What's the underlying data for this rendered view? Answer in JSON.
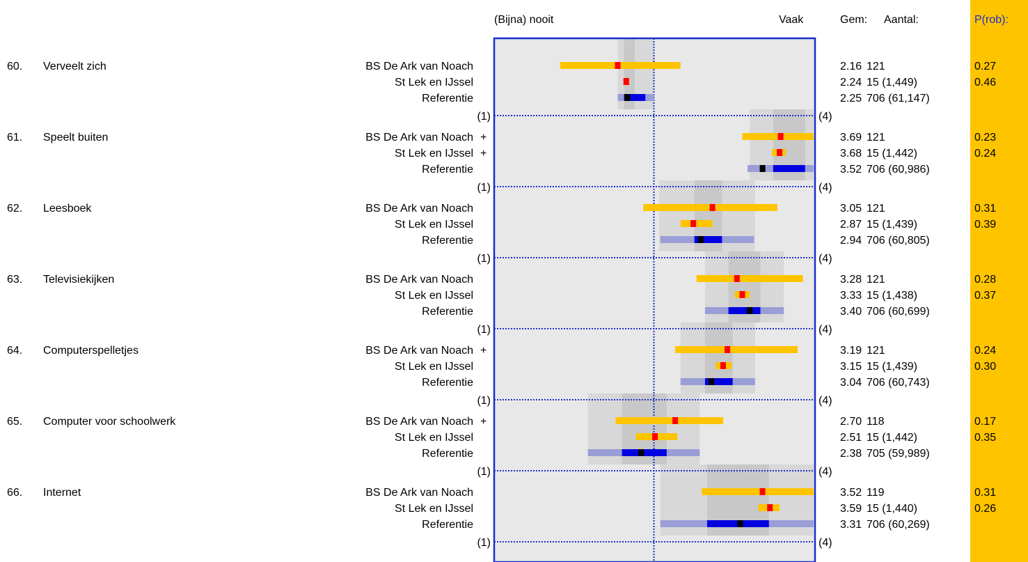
{
  "header": {
    "low_label": "(Bijna) nooit",
    "high_label": "Vaak",
    "mean_label": "Gem:",
    "count_label": "Aantal:",
    "prob_label": "P(rob):"
  },
  "scale": {
    "min_label": "(1)",
    "max_label": "(4)"
  },
  "colors": {
    "panel_bg": "#e8e8e8",
    "band_outer": "#d8d8d8",
    "band_inner": "#c8c8c8",
    "frame": "#1a2ecc",
    "school_bar": "#ffc400",
    "school_mean": "#ff0000",
    "ref_bar_outer": "#9a9ed6",
    "ref_bar_inner": "#0000e0",
    "ref_mean": "#000000",
    "prob_column": "#ffc400"
  },
  "chart_data": {
    "type": "interval-dot",
    "x_range": [
      1,
      4
    ],
    "reference_line": 2.5,
    "items": [
      {
        "number": "60.",
        "label": "Verveelt zich",
        "band_outer": [
          2.16,
          2.5
        ],
        "band_inner": [
          2.22,
          2.32
        ],
        "rows": [
          {
            "name": "BS De Ark van Noach",
            "marker": "",
            "mean": 2.16,
            "mean_text": "2.16",
            "count": "121",
            "prob": "0.27",
            "range": [
              1.62,
              2.75
            ],
            "inner": null
          },
          {
            "name": "St Lek en IJssel",
            "marker": "",
            "mean": 2.24,
            "mean_text": "2.24",
            "count": "15 (1,449)",
            "prob": "0.46",
            "range": [
              2.22,
              2.27
            ],
            "inner": null
          },
          {
            "name": "Referentie",
            "marker": "",
            "mean": 2.25,
            "mean_text": "2.25",
            "count": "706 (61,147)",
            "prob": "",
            "range": [
              2.16,
              2.5
            ],
            "inner": [
              2.22,
              2.42
            ]
          }
        ]
      },
      {
        "number": "61.",
        "label": "Speelt buiten",
        "band_outer": [
          3.4,
          4.0
        ],
        "band_inner": [
          3.62,
          3.92
        ],
        "rows": [
          {
            "name": "BS De Ark van Noach",
            "marker": "+",
            "mean": 3.69,
            "mean_text": "3.69",
            "count": "121",
            "prob": "0.23",
            "range": [
              3.33,
              4.0
            ],
            "inner": null
          },
          {
            "name": "St Lek en IJssel",
            "marker": "+",
            "mean": 3.68,
            "mean_text": "3.68",
            "count": "15 (1,442)",
            "prob": "0.24",
            "range": [
              3.61,
              3.74
            ],
            "inner": null
          },
          {
            "name": "Referentie",
            "marker": "",
            "mean": 3.52,
            "mean_text": "3.52",
            "count": "706 (60,986)",
            "prob": "",
            "range": [
              3.38,
              4.0
            ],
            "inner": [
              3.62,
              3.92
            ]
          }
        ]
      },
      {
        "number": "62.",
        "label": "Leesboek",
        "band_outer": [
          2.55,
          3.45
        ],
        "band_inner": [
          2.88,
          3.14
        ],
        "rows": [
          {
            "name": "BS De Ark van Noach",
            "marker": "",
            "mean": 3.05,
            "mean_text": "3.05",
            "count": "121",
            "prob": "0.31",
            "range": [
              2.4,
              3.66
            ],
            "inner": null
          },
          {
            "name": "St Lek en IJssel",
            "marker": "",
            "mean": 2.87,
            "mean_text": "2.87",
            "count": "15 (1,439)",
            "prob": "0.39",
            "range": [
              2.75,
              3.05
            ],
            "inner": null
          },
          {
            "name": "Referentie",
            "marker": "",
            "mean": 2.94,
            "mean_text": "2.94",
            "count": "706 (60,805)",
            "prob": "",
            "range": [
              2.56,
              3.44
            ],
            "inner": [
              2.88,
              3.14
            ]
          }
        ]
      },
      {
        "number": "63.",
        "label": "Televisiekijken",
        "band_outer": [
          2.98,
          3.72
        ],
        "band_inner": [
          3.2,
          3.5
        ],
        "rows": [
          {
            "name": "BS De Ark van Noach",
            "marker": "",
            "mean": 3.28,
            "mean_text": "3.28",
            "count": "121",
            "prob": "0.28",
            "range": [
              2.9,
              3.9
            ],
            "inner": null
          },
          {
            "name": "St Lek en IJssel",
            "marker": "",
            "mean": 3.33,
            "mean_text": "3.33",
            "count": "15 (1,438)",
            "prob": "0.37",
            "range": [
              3.26,
              3.4
            ],
            "inner": null
          },
          {
            "name": "Referentie",
            "marker": "",
            "mean": 3.4,
            "mean_text": "3.40",
            "count": "706 (60,699)",
            "prob": "",
            "range": [
              2.98,
              3.72
            ],
            "inner": [
              3.2,
              3.5
            ]
          }
        ]
      },
      {
        "number": "64.",
        "label": "Computerspelletjes",
        "band_outer": [
          2.75,
          3.45
        ],
        "band_inner": [
          2.98,
          3.24
        ],
        "rows": [
          {
            "name": "BS De Ark van Noach",
            "marker": "+",
            "mean": 3.19,
            "mean_text": "3.19",
            "count": "121",
            "prob": "0.24",
            "range": [
              2.7,
              3.85
            ],
            "inner": null
          },
          {
            "name": "St Lek en IJssel",
            "marker": "",
            "mean": 3.15,
            "mean_text": "3.15",
            "count": "15 (1,439)",
            "prob": "0.30",
            "range": [
              3.08,
              3.23
            ],
            "inner": null
          },
          {
            "name": "Referentie",
            "marker": "",
            "mean": 3.04,
            "mean_text": "3.04",
            "count": "706 (60,743)",
            "prob": "",
            "range": [
              2.75,
              3.45
            ],
            "inner": [
              2.98,
              3.24
            ]
          }
        ]
      },
      {
        "number": "65.",
        "label": "Computer voor schoolwerk",
        "band_outer": [
          1.88,
          2.93
        ],
        "band_inner": [
          2.2,
          2.62
        ],
        "rows": [
          {
            "name": "BS De Ark van Noach",
            "marker": "+",
            "mean": 2.7,
            "mean_text": "2.70",
            "count": "118",
            "prob": "0.17",
            "range": [
              2.14,
              3.15
            ],
            "inner": null
          },
          {
            "name": "St Lek en IJssel",
            "marker": "",
            "mean": 2.51,
            "mean_text": "2.51",
            "count": "15 (1,442)",
            "prob": "0.35",
            "range": [
              2.33,
              2.72
            ],
            "inner": null
          },
          {
            "name": "Referentie",
            "marker": "",
            "mean": 2.38,
            "mean_text": "2.38",
            "count": "705 (59,989)",
            "prob": "",
            "range": [
              1.88,
              2.93
            ],
            "inner": [
              2.2,
              2.62
            ]
          }
        ]
      },
      {
        "number": "66.",
        "label": "Internet",
        "band_outer": [
          2.56,
          4.0
        ],
        "band_inner": [
          3.0,
          3.58
        ],
        "rows": [
          {
            "name": "BS De Ark van Noach",
            "marker": "",
            "mean": 3.52,
            "mean_text": "3.52",
            "count": "119",
            "prob": "0.31",
            "range": [
              2.95,
              4.0
            ],
            "inner": null
          },
          {
            "name": "St Lek en IJssel",
            "marker": "",
            "mean": 3.59,
            "mean_text": "3.59",
            "count": "15 (1,440)",
            "prob": "0.26",
            "range": [
              3.48,
              3.68
            ],
            "inner": null
          },
          {
            "name": "Referentie",
            "marker": "",
            "mean": 3.31,
            "mean_text": "3.31",
            "count": "706 (60,269)",
            "prob": "",
            "range": [
              2.56,
              4.0
            ],
            "inner": [
              3.0,
              3.58
            ]
          }
        ]
      }
    ]
  }
}
